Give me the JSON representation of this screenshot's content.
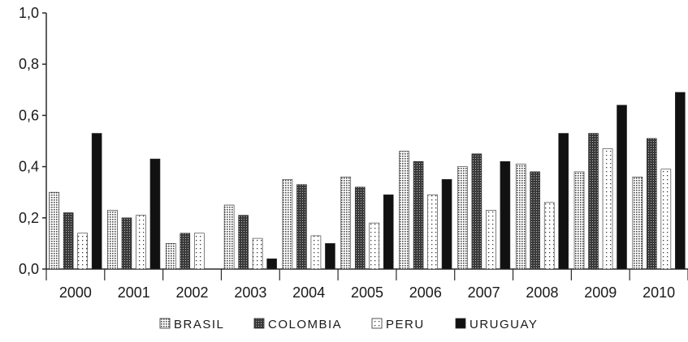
{
  "chart_data": {
    "type": "bar",
    "title": "",
    "xlabel": "",
    "ylabel": "",
    "ylim": [
      0,
      1.0
    ],
    "yticks": [
      "0,0",
      "0,2",
      "0,4",
      "0,6",
      "0,8",
      "1,0"
    ],
    "grid": false,
    "legend_position": "bottom",
    "categories": [
      "2000",
      "2001",
      "2002",
      "2003",
      "2004",
      "2005",
      "2006",
      "2007",
      "2008",
      "2009",
      "2010"
    ],
    "series": [
      {
        "name": "BRASIL",
        "pattern": "fine-dots",
        "color": "#555555",
        "values": [
          0.3,
          0.23,
          0.1,
          0.25,
          0.35,
          0.36,
          0.46,
          0.4,
          0.41,
          0.38,
          0.36
        ]
      },
      {
        "name": "COLOMBIA",
        "pattern": "dense-dark",
        "color": "#333333",
        "values": [
          0.22,
          0.2,
          0.14,
          0.21,
          0.33,
          0.32,
          0.42,
          0.45,
          0.38,
          0.53,
          0.51
        ]
      },
      {
        "name": "PERU",
        "pattern": "sparse-dots",
        "color": "#777777",
        "values": [
          0.14,
          0.21,
          0.14,
          0.12,
          0.13,
          0.18,
          0.29,
          0.23,
          0.26,
          0.47,
          0.39
        ]
      },
      {
        "name": "URUGUAY",
        "pattern": "solid",
        "color": "#111111",
        "values": [
          0.53,
          0.43,
          null,
          0.04,
          0.1,
          0.29,
          0.35,
          0.42,
          0.53,
          0.64,
          0.69
        ]
      }
    ]
  }
}
